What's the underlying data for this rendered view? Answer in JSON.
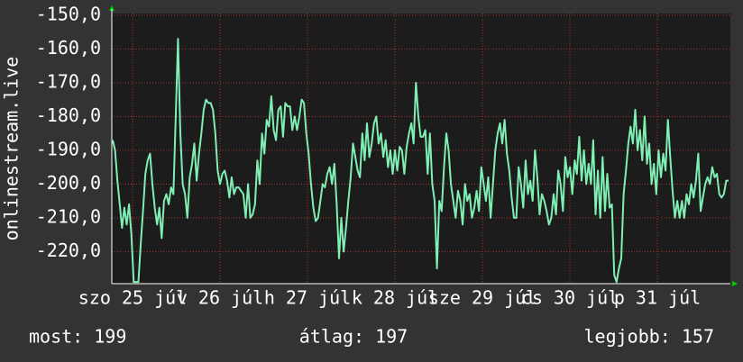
{
  "chart_data": {
    "type": "line",
    "ylabel": "onlinestream.live",
    "xtick_labels": [
      "szo 25 júl",
      "v 26 júl",
      "h 27 júl",
      "k 28 júl",
      "sze 29 júl",
      "cs 30 júl",
      "p 31 júl"
    ],
    "series": [
      {
        "name": "onlinestream.live",
        "color": "#7fefb4",
        "values": [
          -187,
          -190,
          -199,
          -206,
          -213,
          -207,
          -212,
          -206,
          -215,
          -229,
          -229,
          -229,
          -218,
          -208,
          -197,
          -193,
          -191,
          -200,
          -207,
          -212,
          -207,
          -216,
          -205,
          -203,
          -206,
          -201,
          -203,
          -180,
          -157,
          -185,
          -200,
          -203,
          -210,
          -198,
          -194,
          -188,
          -199,
          -191,
          -185,
          -178,
          -175,
          -176,
          -176,
          -178,
          -185,
          -196,
          -200,
          -197,
          -196,
          -199,
          -204,
          -198,
          -203,
          -201,
          -201,
          -202,
          -203,
          -210,
          -200,
          -210,
          -209,
          -206,
          -193,
          -200,
          -185,
          -191,
          -181,
          -183,
          -174,
          -184,
          -187,
          -178,
          -177,
          -186,
          -176,
          -177,
          -177,
          -184,
          -180,
          -184,
          -180,
          -175,
          -176,
          -185,
          -191,
          -200,
          -207,
          -211,
          -210,
          -205,
          -200,
          -201,
          -197,
          -195,
          -200,
          -194,
          -206,
          -222,
          -210,
          -220,
          -213,
          -205,
          -198,
          -188,
          -192,
          -196,
          -198,
          -185,
          -193,
          -182,
          -192,
          -188,
          -182,
          -180,
          -188,
          -185,
          -192,
          -187,
          -195,
          -190,
          -197,
          -190,
          -196,
          -189,
          -190,
          -197,
          -189,
          -185,
          -182,
          -188,
          -170,
          -180,
          -186,
          -186,
          -184,
          -197,
          -185,
          -200,
          -205,
          -225,
          -205,
          -208,
          -195,
          -185,
          -190,
          -200,
          -205,
          -210,
          -202,
          -205,
          -212,
          -200,
          -205,
          -203,
          -210,
          -207,
          -202,
          -208,
          -195,
          -200,
          -205,
          -198,
          -210,
          -200,
          -190,
          -185,
          -182,
          -188,
          -181,
          -191,
          -196,
          -204,
          -210,
          -210,
          -195,
          -200,
          -207,
          -193,
          -203,
          -199,
          -205,
          -190,
          -198,
          -209,
          -203,
          -205,
          -208,
          -212,
          -210,
          -203,
          -209,
          -196,
          -200,
          -208,
          -192,
          -198,
          -195,
          -203,
          -193,
          -197,
          -186,
          -199,
          -190,
          -200,
          -194,
          -200,
          -187,
          -209,
          -196,
          -210,
          -192,
          -208,
          -197,
          -207,
          -206,
          -227,
          -229,
          -225,
          -222,
          -203,
          -196,
          -188,
          -183,
          -188,
          -178,
          -190,
          -184,
          -193,
          -180,
          -194,
          -188,
          -200,
          -194,
          -203,
          -190,
          -198,
          -191,
          -196,
          -181,
          -192,
          -202,
          -210,
          -205,
          -210,
          -205,
          -210,
          -203,
          -206,
          -200,
          -204,
          -199,
          -191,
          -208,
          -204,
          -200,
          -198,
          -200,
          -195,
          -198,
          -197,
          -203,
          -204,
          -203,
          -199,
          -199
        ]
      }
    ],
    "ylim": [
      -229.5,
      -149.5
    ],
    "yticks": [
      {
        "value": -150,
        "label": "-150,0"
      },
      {
        "value": -160,
        "label": "-160,0"
      },
      {
        "value": -170,
        "label": "-170,0"
      },
      {
        "value": -180,
        "label": "-180,0"
      },
      {
        "value": -190,
        "label": "-190,0"
      },
      {
        "value": -200,
        "label": "-200,0"
      },
      {
        "value": -210,
        "label": "-210,0"
      },
      {
        "value": -220,
        "label": "-220,0"
      }
    ],
    "grid": true,
    "footer": [
      "most: 199",
      "átlag: 197",
      "legjobb: 157"
    ]
  }
}
